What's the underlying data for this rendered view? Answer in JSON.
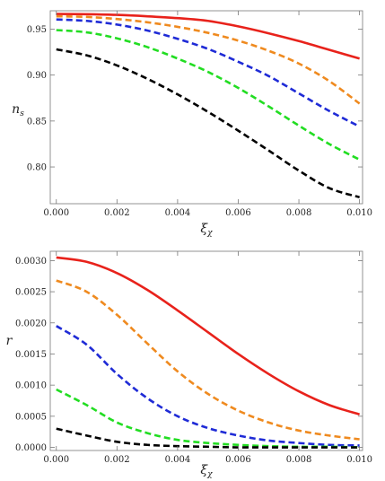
{
  "colors": {
    "red": "#e8221b",
    "orange": "#ef8a1f",
    "blue": "#1f2bd6",
    "green": "#22dd22",
    "black": "#000000"
  },
  "chart_data": [
    {
      "type": "line",
      "xlabel": "ξ",
      "xlabel_sub": "χ",
      "ylabel": "n",
      "ylabel_sub": "s",
      "xlim": [
        -0.0002,
        0.0101
      ],
      "ylim": [
        0.76,
        0.97
      ],
      "x_ticks": [
        0.0,
        0.002,
        0.004,
        0.006,
        0.008,
        0.01
      ],
      "x_tick_labels": [
        "0.000",
        "0.002",
        "0.004",
        "0.006",
        "0.008",
        "0.010"
      ],
      "y_ticks": [
        0.8,
        0.85,
        0.9,
        0.95
      ],
      "y_tick_labels": [
        "0.80",
        "0.85",
        "0.90",
        "0.95"
      ],
      "grid": false,
      "series": [
        {
          "color": "#e8221b",
          "dash": "solid",
          "x": [
            0.0,
            0.001,
            0.002,
            0.003,
            0.004,
            0.005,
            0.006,
            0.007,
            0.008,
            0.009,
            0.01
          ],
          "y": [
            0.9665,
            0.9663,
            0.9655,
            0.964,
            0.962,
            0.959,
            0.953,
            0.9455,
            0.937,
            0.9275,
            0.918
          ]
        },
        {
          "color": "#ef8a1f",
          "dash": "dashed",
          "x": [
            0.0,
            0.001,
            0.002,
            0.003,
            0.004,
            0.005,
            0.006,
            0.007,
            0.008,
            0.009,
            0.01
          ],
          "y": [
            0.964,
            0.9633,
            0.961,
            0.9575,
            0.9525,
            0.946,
            0.9375,
            0.9265,
            0.9125,
            0.8935,
            0.869
          ]
        },
        {
          "color": "#1f2bd6",
          "dash": "dashed",
          "x": [
            0.0,
            0.001,
            0.002,
            0.003,
            0.004,
            0.005,
            0.006,
            0.007,
            0.008,
            0.009,
            0.01
          ],
          "y": [
            0.9605,
            0.959,
            0.955,
            0.9485,
            0.9395,
            0.9285,
            0.9145,
            0.899,
            0.88,
            0.861,
            0.844
          ]
        },
        {
          "color": "#22dd22",
          "dash": "dashed",
          "x": [
            0.0,
            0.001,
            0.002,
            0.003,
            0.004,
            0.005,
            0.006,
            0.007,
            0.008,
            0.009,
            0.01
          ],
          "y": [
            0.949,
            0.9465,
            0.94,
            0.9305,
            0.918,
            0.9035,
            0.886,
            0.866,
            0.845,
            0.825,
            0.808
          ]
        },
        {
          "color": "#000000",
          "dash": "dashed",
          "x": [
            0.0,
            0.001,
            0.002,
            0.003,
            0.004,
            0.005,
            0.006,
            0.007,
            0.008,
            0.009,
            0.01
          ],
          "y": [
            0.928,
            0.9215,
            0.9105,
            0.896,
            0.879,
            0.86,
            0.8395,
            0.818,
            0.796,
            0.777,
            0.767
          ]
        }
      ]
    },
    {
      "type": "line",
      "xlabel": "ξ",
      "xlabel_sub": "χ",
      "ylabel": "r",
      "ylabel_sub": "",
      "xlim": [
        -0.0002,
        0.0101
      ],
      "ylim": [
        -5e-05,
        0.00315
      ],
      "x_ticks": [
        0.0,
        0.002,
        0.004,
        0.006,
        0.008,
        0.01
      ],
      "x_tick_labels": [
        "0.000",
        "0.002",
        "0.004",
        "0.006",
        "0.008",
        "0.010"
      ],
      "y_ticks": [
        0.0,
        0.0005,
        0.001,
        0.0015,
        0.002,
        0.0025,
        0.003
      ],
      "y_tick_labels": [
        "0.0000",
        "0.0005",
        "0.0010",
        "0.0015",
        "0.0020",
        "0.0025",
        "0.0030"
      ],
      "grid": false,
      "series": [
        {
          "color": "#e8221b",
          "dash": "solid",
          "x": [
            0.0,
            0.001,
            0.002,
            0.003,
            0.004,
            0.005,
            0.006,
            0.007,
            0.008,
            0.009,
            0.01
          ],
          "y": [
            0.00305,
            0.00298,
            0.0028,
            0.00253,
            0.0022,
            0.00185,
            0.0015,
            0.00118,
            0.0009,
            0.00068,
            0.00053
          ]
        },
        {
          "color": "#ef8a1f",
          "dash": "dashed",
          "x": [
            0.0,
            0.001,
            0.002,
            0.003,
            0.004,
            0.005,
            0.006,
            0.007,
            0.008,
            0.009,
            0.01
          ],
          "y": [
            0.00268,
            0.0025,
            0.00213,
            0.00167,
            0.00122,
            0.00086,
            0.00059,
            0.0004,
            0.00027,
            0.00019,
            0.00013
          ]
        },
        {
          "color": "#1f2bd6",
          "dash": "dashed",
          "x": [
            0.0,
            0.001,
            0.002,
            0.003,
            0.004,
            0.005,
            0.006,
            0.007,
            0.008,
            0.009,
            0.01
          ],
          "y": [
            0.00195,
            0.00165,
            0.00118,
            0.00079,
            0.0005,
            0.00031,
            0.00019,
            0.00011,
            7e-05,
            4e-05,
            3e-05
          ]
        },
        {
          "color": "#22dd22",
          "dash": "dashed",
          "x": [
            0.0,
            0.001,
            0.002,
            0.003,
            0.004,
            0.005,
            0.006,
            0.007,
            0.008,
            0.009,
            0.01
          ],
          "y": [
            0.00093,
            0.00068,
            0.0004,
            0.00023,
            0.00012,
            7e-05,
            4e-05,
            2e-05,
            1e-05,
            1e-05,
            0.0
          ]
        },
        {
          "color": "#000000",
          "dash": "dashed",
          "x": [
            0.0,
            0.001,
            0.002,
            0.003,
            0.004,
            0.005,
            0.006,
            0.007,
            0.008,
            0.009,
            0.01
          ],
          "y": [
            0.0003,
            0.00019,
            9e-05,
            4e-05,
            2e-05,
            1e-05,
            0.0,
            0.0,
            0.0,
            0.0,
            0.0
          ]
        }
      ]
    }
  ]
}
